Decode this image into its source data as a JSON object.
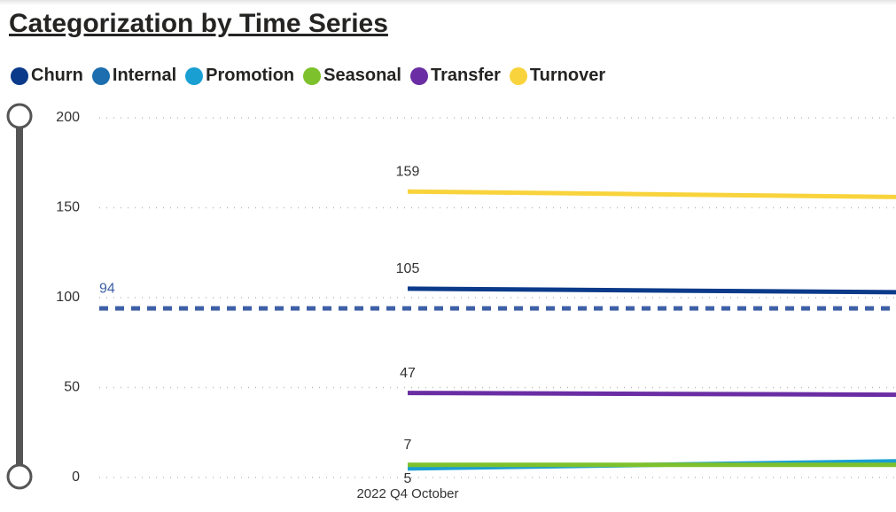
{
  "chart_data": {
    "type": "line",
    "title": "Categorization by Time Series",
    "categories": [
      "2022 Q4 October",
      null
    ],
    "series": [
      {
        "name": "Churn",
        "color": "#0b3a8a",
        "values": [
          105,
          103
        ]
      },
      {
        "name": "Internal",
        "color": "#1c6eae",
        "values": [
          null,
          null
        ]
      },
      {
        "name": "Promotion",
        "color": "#1a9fd3",
        "values": [
          5,
          9
        ]
      },
      {
        "name": "Seasonal",
        "color": "#7dc12c",
        "values": [
          7,
          7
        ]
      },
      {
        "name": "Transfer",
        "color": "#6a2da3",
        "values": [
          47,
          46
        ]
      },
      {
        "name": "Turnover",
        "color": "#f8d33c",
        "values": [
          159,
          156
        ]
      }
    ],
    "ylim": [
      0,
      200
    ],
    "yticks": [
      0,
      50,
      100,
      150,
      200
    ],
    "grid": true,
    "reference_line": {
      "value": 94,
      "color": "#3d5fa6"
    }
  }
}
